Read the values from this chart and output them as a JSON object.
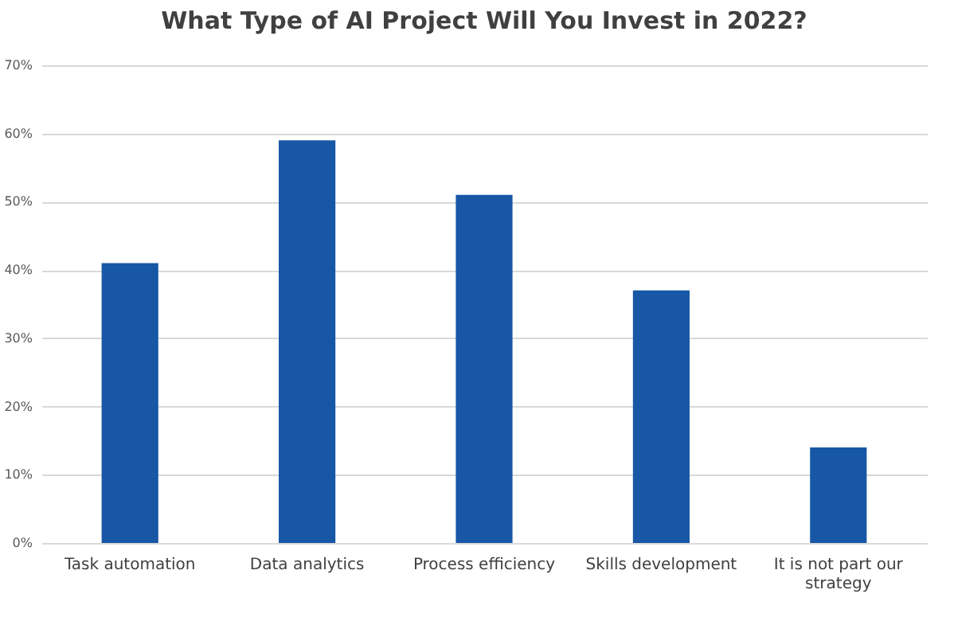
{
  "chart_data": {
    "type": "bar",
    "title": "What Type of AI Project Will You Invest in 2022?",
    "categories": [
      "Task automation",
      "Data analytics",
      "Process efficiency",
      "Skills development",
      "It is not part our strategy"
    ],
    "values": [
      41,
      59,
      51,
      37,
      14
    ],
    "color": "#1757a6",
    "ylim": [
      0,
      70
    ],
    "yticks": [
      {
        "value": 0,
        "label": "0%"
      },
      {
        "value": 10,
        "label": "10%"
      },
      {
        "value": 20,
        "label": "20%"
      },
      {
        "value": 30,
        "label": "30%"
      },
      {
        "value": 40,
        "label": "40%"
      },
      {
        "value": 50,
        "label": "50%"
      },
      {
        "value": 60,
        "label": "60%"
      },
      {
        "value": 70,
        "label": "70%"
      }
    ],
    "grid": true
  }
}
